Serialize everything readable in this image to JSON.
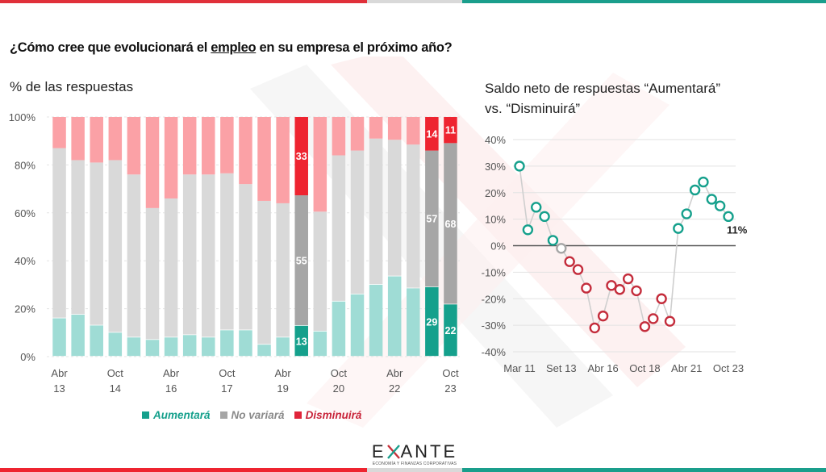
{
  "header": {
    "title_before": "¿Cómo cree que evolucionará el ",
    "title_underlined": "empleo",
    "title_after": " en su empresa el próximo año?"
  },
  "colors": {
    "aumentara": "#15a08c",
    "aumentara_light": "#9fdcd5",
    "no_variara": "#a6a6a6",
    "no_variara_light": "#d9d9d9",
    "disminuira": "#ee2430",
    "disminuira_light": "#fba1a6",
    "brand_red": "#e0303a",
    "brand_teal": "#1a9e8c"
  },
  "chart_data": [
    {
      "type": "bar",
      "stacked": true,
      "title": "% de las respuestas",
      "xlabel": "",
      "ylabel": "",
      "ylim": [
        0,
        100
      ],
      "yticks": [
        "0%",
        "20%",
        "40%",
        "60%",
        "80%",
        "100%"
      ],
      "categories": [
        "Abr 13",
        "Oct 13",
        "Abr 14",
        "Oct 14",
        "Abr 15",
        "Oct 15",
        "Abr 16",
        "Oct 16",
        "Abr 17",
        "Oct 17",
        "Abr 18",
        "Oct 18",
        "Abr 19",
        "Oct 19",
        "Abr 20",
        "Oct 20",
        "Abr 21",
        "Oct 21",
        "Abr 22",
        "Oct 22",
        "Abr 23",
        "Oct 23"
      ],
      "xtick_labels": [
        {
          "index": 0,
          "line1": "Abr",
          "line2": "13"
        },
        {
          "index": 3,
          "line1": "Oct",
          "line2": "14"
        },
        {
          "index": 6,
          "line1": "Abr",
          "line2": "16"
        },
        {
          "index": 9,
          "line1": "Oct",
          "line2": "17"
        },
        {
          "index": 12,
          "line1": "Abr",
          "line2": "19"
        },
        {
          "index": 15,
          "line1": "Oct",
          "line2": "20"
        },
        {
          "index": 18,
          "line1": "Abr",
          "line2": "22"
        },
        {
          "index": 21,
          "line1": "Oct",
          "line2": "23"
        }
      ],
      "highlighted": [
        13,
        20,
        21
      ],
      "series": [
        {
          "name": "Aumentará",
          "values": [
            16,
            17.5,
            13,
            10,
            8,
            7,
            8,
            9,
            8,
            11,
            11,
            5,
            8,
            13,
            10.5,
            23,
            26,
            30,
            33.5,
            28.5,
            29,
            22
          ]
        },
        {
          "name": "No variará",
          "values": [
            71,
            64.5,
            68,
            72,
            68,
            55,
            58,
            67,
            68,
            65.5,
            61,
            60,
            56,
            55,
            50,
            61,
            60,
            61,
            57,
            60,
            57,
            68
          ]
        },
        {
          "name": "Disminuirá",
          "values": [
            13,
            18,
            19,
            18,
            24,
            38,
            34,
            24,
            24,
            23.5,
            28,
            35,
            36,
            33,
            39.5,
            16,
            14,
            9,
            9.5,
            11.5,
            14,
            11
          ]
        }
      ],
      "data_labels": [
        {
          "index": 13,
          "series": "Disminuirá",
          "text": "33"
        },
        {
          "index": 13,
          "series": "No variará",
          "text": "55"
        },
        {
          "index": 13,
          "series": "Aumentará",
          "text": "13"
        },
        {
          "index": 20,
          "series": "Disminuirá",
          "text": "14"
        },
        {
          "index": 20,
          "series": "No variará",
          "text": "57"
        },
        {
          "index": 20,
          "series": "Aumentará",
          "text": "29"
        },
        {
          "index": 21,
          "series": "Disminuirá",
          "text": "11"
        },
        {
          "index": 21,
          "series": "No variará",
          "text": "68"
        },
        {
          "index": 21,
          "series": "Aumentará",
          "text": "22"
        }
      ],
      "legend": {
        "position": "bottom",
        "entries": [
          "Aumentará",
          "No variará",
          "Disminuirá"
        ]
      },
      "grid": true
    },
    {
      "type": "line",
      "title": "Saldo neto de respuestas “Aumentará” vs. “Disminuirá”",
      "xlabel": "",
      "ylabel": "",
      "ylim": [
        -40,
        40
      ],
      "yticks": [
        "-40%",
        "-30%",
        "-20%",
        "-10%",
        "0%",
        "10%",
        "20%",
        "30%",
        "40%"
      ],
      "ytick_values": [
        -40,
        -30,
        -20,
        -10,
        0,
        10,
        20,
        30,
        40
      ],
      "xtick_labels": [
        {
          "index": 0,
          "text": "Mar 11"
        },
        {
          "index": 5,
          "text": "Set 13"
        },
        {
          "index": 10,
          "text": "Abr 16"
        },
        {
          "index": 15,
          "text": "Oct 18"
        },
        {
          "index": 20,
          "text": "Abr 21"
        },
        {
          "index": 25,
          "text": "Oct 23"
        }
      ],
      "series": [
        {
          "name": "Saldo neto",
          "values": [
            30,
            6,
            14.5,
            11,
            2,
            -1,
            -6,
            -9,
            -16,
            -31,
            -26.5,
            -15,
            -16.5,
            -12.5,
            -17,
            -30.5,
            -27.5,
            -20,
            -28.5,
            6.5,
            12,
            21,
            24,
            17.5,
            15,
            11
          ]
        }
      ],
      "end_label": "11%",
      "grid": true
    }
  ],
  "legend": {
    "items": [
      {
        "label": "Aumentará",
        "color": "#15a08c"
      },
      {
        "label": "No variará",
        "color": "#a6a6a6"
      },
      {
        "label": "Disminuirá",
        "color": "#d9243a"
      }
    ]
  },
  "logo": {
    "left": "E",
    "right": "ANTE",
    "tagline": "ECONOMÍA Y FINANZAS CORPORATIVAS"
  }
}
